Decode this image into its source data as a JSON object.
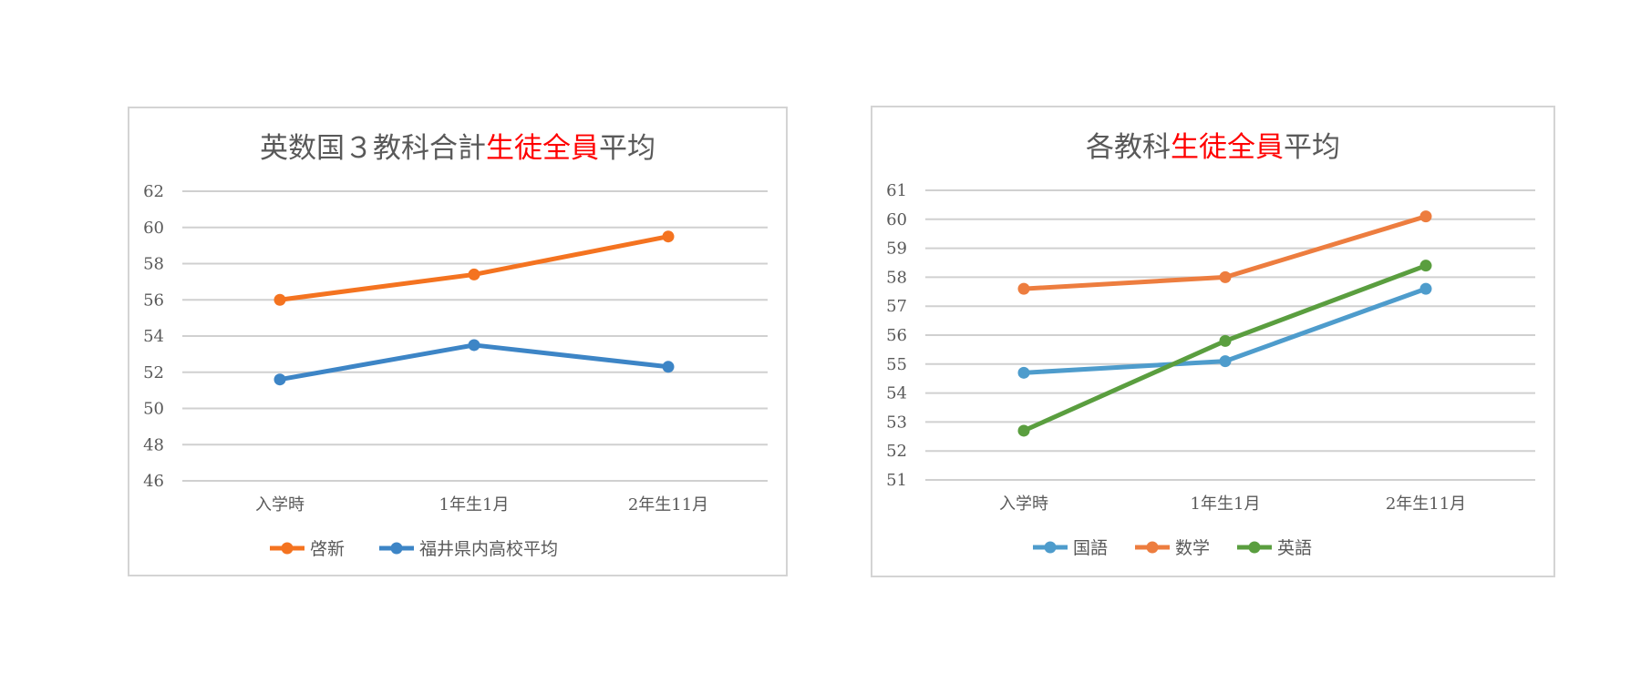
{
  "chart_data": [
    {
      "type": "line",
      "title_parts": [
        {
          "text": "英数国３教科合計",
          "highlight": false
        },
        {
          "text": "生徒全員",
          "highlight": true
        },
        {
          "text": "平均",
          "highlight": false
        }
      ],
      "categories": [
        "入学時",
        "1年生1月",
        "2年生11月"
      ],
      "ylim": [
        46,
        62
      ],
      "yticks": [
        46,
        48,
        50,
        52,
        54,
        56,
        58,
        60,
        62
      ],
      "grid": true,
      "legend_position": "bottom",
      "series": [
        {
          "name": "啓新",
          "color": "#f47320",
          "values": [
            56.0,
            57.4,
            59.5
          ]
        },
        {
          "name": "福井県内高校平均",
          "color": "#3d85c6",
          "values": [
            51.6,
            53.5,
            52.3
          ]
        }
      ]
    },
    {
      "type": "line",
      "title_parts": [
        {
          "text": "各教科",
          "highlight": false
        },
        {
          "text": "生徒全員",
          "highlight": true
        },
        {
          "text": "平均",
          "highlight": false
        }
      ],
      "categories": [
        "入学時",
        "1年生1月",
        "2年生11月"
      ],
      "ylim": [
        51,
        61
      ],
      "yticks": [
        51,
        52,
        53,
        54,
        55,
        56,
        57,
        58,
        59,
        60,
        61
      ],
      "grid": true,
      "legend_position": "bottom",
      "series": [
        {
          "name": "国語",
          "color": "#4e9ccc",
          "values": [
            54.7,
            55.1,
            57.6
          ]
        },
        {
          "name": "数学",
          "color": "#ed7d3f",
          "values": [
            57.6,
            58.0,
            60.1
          ]
        },
        {
          "name": "英語",
          "color": "#5a9e3f",
          "values": [
            52.7,
            55.8,
            58.4
          ]
        }
      ]
    }
  ]
}
